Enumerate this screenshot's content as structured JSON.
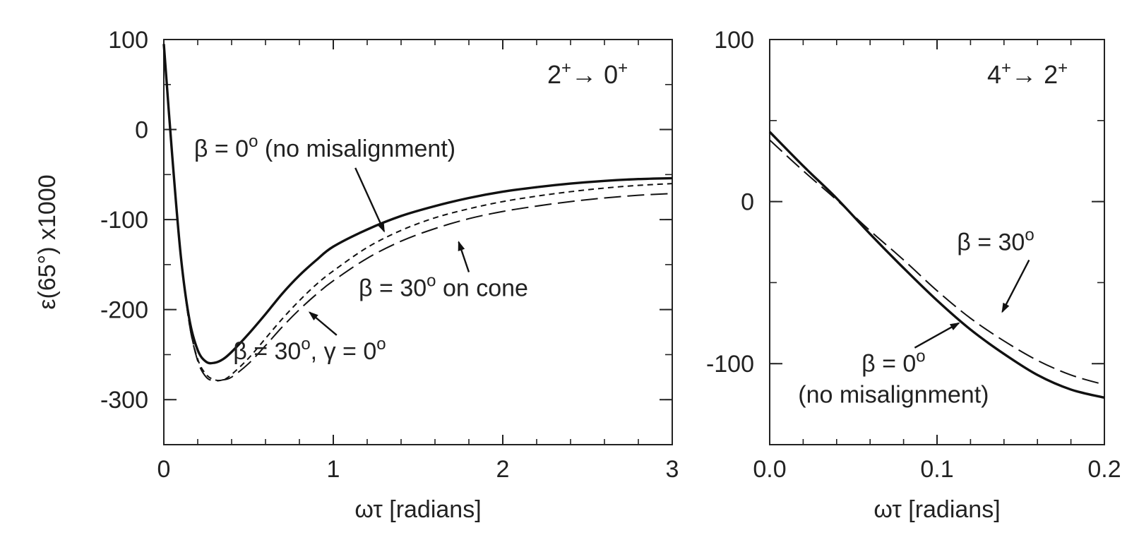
{
  "chart_data": [
    {
      "type": "line",
      "panel_label": "2+→ 0+",
      "xlabel": "ωτ [radians]",
      "ylabel": "ε(65°) x1000",
      "xlim": [
        0,
        3
      ],
      "ylim": [
        -350,
        100
      ],
      "xticks": [
        0,
        1,
        2,
        3
      ],
      "xtick_labels": [
        "0",
        "1",
        "2",
        "3"
      ],
      "yticks": [
        100,
        0,
        -100,
        -200,
        -300
      ],
      "ytick_labels": [
        "100",
        "0",
        "-100",
        "-200",
        "-300"
      ],
      "series": [
        {
          "style": "solid",
          "x": [
            0,
            0.05,
            0.1,
            0.15,
            0.2,
            0.25,
            0.3,
            0.35,
            0.4,
            0.5,
            0.6,
            0.7,
            0.8,
            0.9,
            1.0,
            1.2,
            1.4,
            1.6,
            1.8,
            2.0,
            2.2,
            2.4,
            2.6,
            2.8,
            3.0
          ],
          "y": [
            95,
            -30,
            -140,
            -210,
            -245,
            -258,
            -259,
            -255,
            -247,
            -227,
            -205,
            -182,
            -162,
            -145,
            -130,
            -111,
            -96,
            -85,
            -76,
            -69,
            -64,
            -60,
            -57,
            -55,
            -54
          ]
        },
        {
          "style": "short-dash",
          "x": [
            0,
            0.05,
            0.1,
            0.15,
            0.2,
            0.25,
            0.3,
            0.35,
            0.4,
            0.5,
            0.6,
            0.7,
            0.8,
            0.9,
            1.0,
            1.2,
            1.4,
            1.6,
            1.8,
            2.0,
            2.2,
            2.4,
            2.6,
            2.8,
            3.0
          ],
          "y": [
            95,
            -30,
            -140,
            -215,
            -255,
            -272,
            -278,
            -278,
            -272,
            -254,
            -232,
            -210,
            -190,
            -172,
            -157,
            -131,
            -112,
            -98,
            -88,
            -80,
            -74,
            -69,
            -65,
            -62,
            -60
          ]
        },
        {
          "style": "long-dash",
          "x": [
            0,
            0.05,
            0.1,
            0.15,
            0.2,
            0.25,
            0.3,
            0.35,
            0.4,
            0.5,
            0.6,
            0.7,
            0.8,
            0.9,
            1.0,
            1.2,
            1.4,
            1.6,
            1.8,
            2.0,
            2.2,
            2.4,
            2.6,
            2.8,
            3.0
          ],
          "y": [
            95,
            -30,
            -140,
            -215,
            -257,
            -275,
            -279,
            -278,
            -275,
            -260,
            -240,
            -219,
            -200,
            -183,
            -168,
            -143,
            -124,
            -110,
            -99,
            -91,
            -85,
            -80,
            -76,
            -73,
            -71
          ]
        }
      ],
      "annotations": [
        {
          "text": "β = 0",
          "sup": "o",
          "after": " (no misalignment)",
          "tx": 0.95,
          "ty": -30,
          "ax": 1.3,
          "ay": -113
        },
        {
          "text": "β = 30",
          "sup": "o",
          "after": "  on cone",
          "tx": 1.65,
          "ty": -185,
          "ax": 1.74,
          "ay": -125
        },
        {
          "text": "β = 30",
          "sup": "o",
          "after": ", γ = 0",
          "sup2": "o",
          "tx": 0.86,
          "ty": -255,
          "ax": 0.86,
          "ay": -203
        }
      ]
    },
    {
      "type": "line",
      "panel_label": "4+→ 2+",
      "xlabel": "ωτ [radians]",
      "ylabel": "",
      "xlim": [
        0,
        0.2
      ],
      "ylim": [
        -150,
        100
      ],
      "xticks": [
        0,
        0.1,
        0.2
      ],
      "xtick_labels": [
        "0.0",
        "0.1",
        "0.2"
      ],
      "yticks": [
        100,
        0,
        -100
      ],
      "ytick_labels": [
        "100",
        "0",
        "-100"
      ],
      "series": [
        {
          "style": "solid",
          "x": [
            0,
            0.02,
            0.04,
            0.06,
            0.08,
            0.1,
            0.12,
            0.14,
            0.16,
            0.18,
            0.2
          ],
          "y": [
            43,
            22,
            2,
            -20,
            -41,
            -61,
            -79,
            -94,
            -107,
            -116,
            -121
          ]
        },
        {
          "style": "long-dash",
          "x": [
            0,
            0.02,
            0.04,
            0.06,
            0.08,
            0.1,
            0.12,
            0.14,
            0.16,
            0.18,
            0.2
          ],
          "y": [
            38,
            19,
            1,
            -18,
            -36,
            -55,
            -72,
            -86,
            -98,
            -107,
            -113
          ]
        }
      ],
      "annotations": [
        {
          "text": "β = 30",
          "sup": "o",
          "after": "",
          "tx": 0.135,
          "ty": -30,
          "ax": 0.139,
          "ay": -68
        },
        {
          "text": "β = 0",
          "sup": "o",
          "after": "",
          "line2": "(no misalignment)",
          "tx": 0.074,
          "ty": -105,
          "ax": 0.113,
          "ay": -75
        }
      ]
    }
  ]
}
